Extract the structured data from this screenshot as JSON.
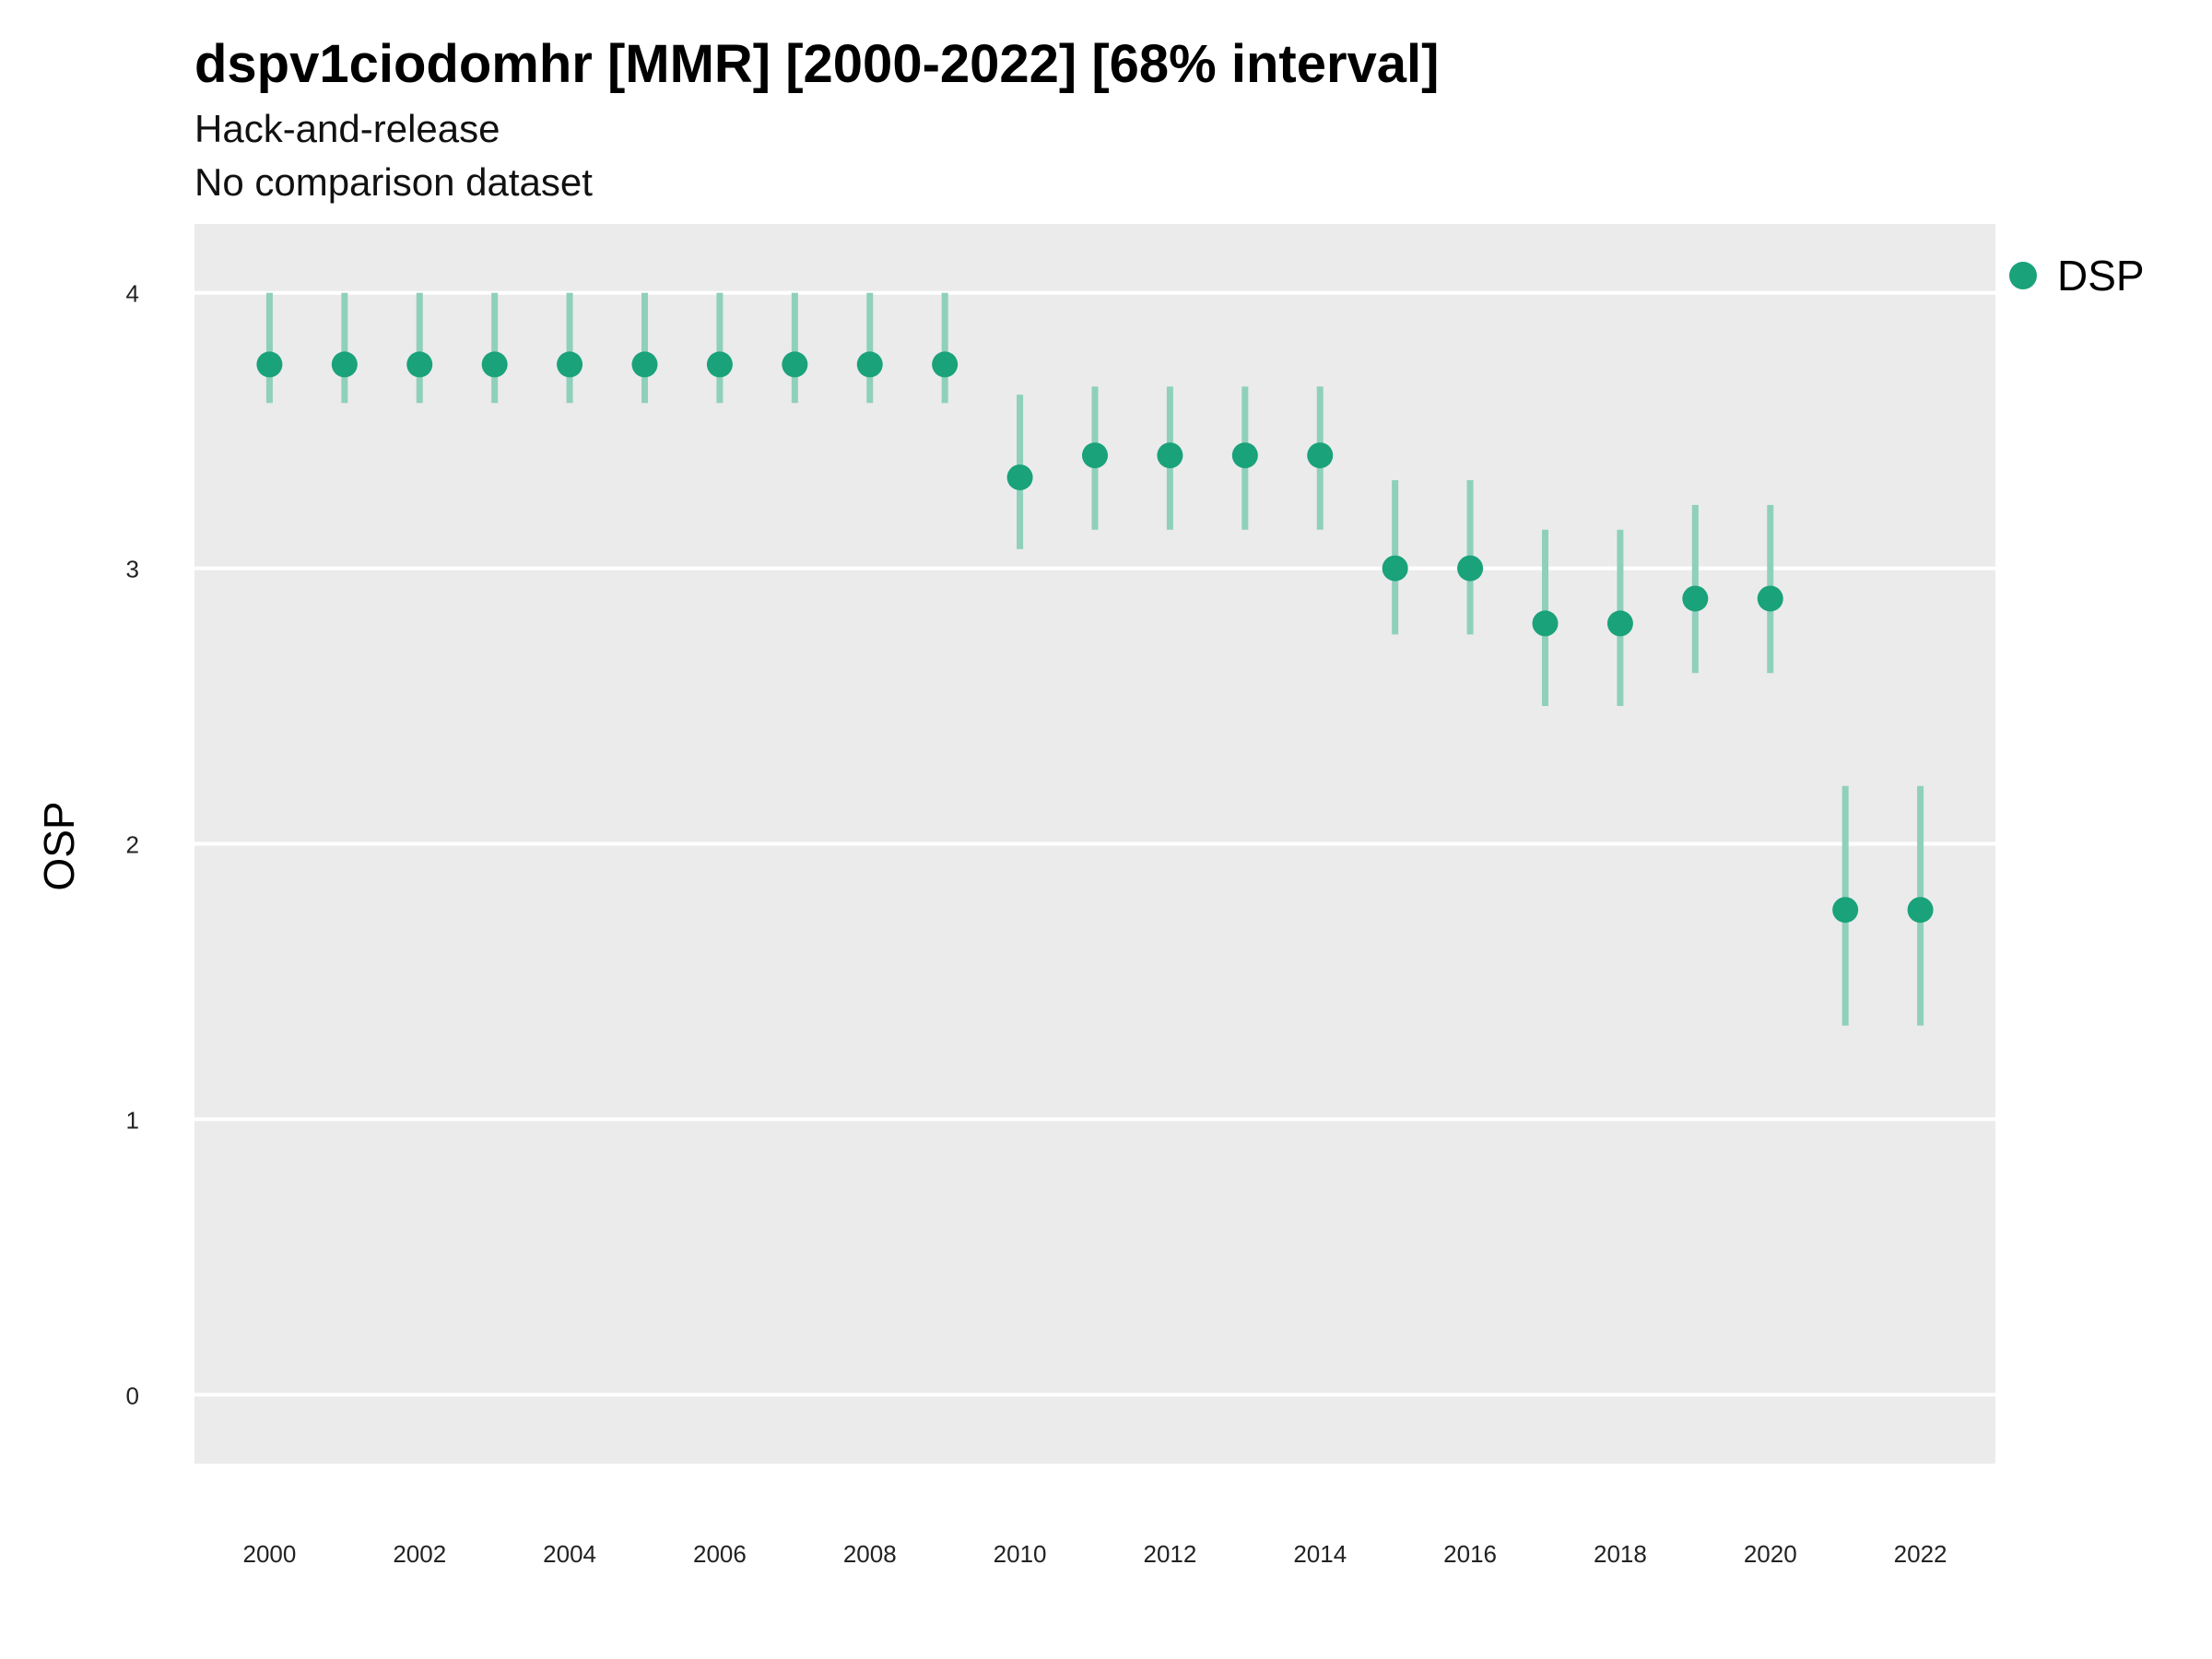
{
  "title": "dspv1ciodomhr [MMR] [2000-2022] [68% interval]",
  "subtitle_lines": [
    "Hack-and-release",
    "No comparison dataset"
  ],
  "colors": {
    "point": "#1aa27a",
    "interval": "#8fd0bb",
    "panel": "#ebebeb",
    "grid": "#ffffff"
  },
  "chart_data": {
    "type": "scatter",
    "title": "dspv1ciodomhr [MMR] [2000-2022] [68% interval]",
    "subtitle": "Hack-and-release\nNo comparison dataset",
    "xlabel": "",
    "ylabel": "OSP",
    "xlim": [
      1999,
      2023
    ],
    "ylim": [
      -0.25,
      4.25
    ],
    "x_ticks": [
      2000,
      2002,
      2004,
      2006,
      2008,
      2010,
      2012,
      2014,
      2016,
      2018,
      2020,
      2022
    ],
    "y_ticks": [
      0,
      1,
      2,
      3,
      4
    ],
    "grid": "horizontal major lines only",
    "legend": "right",
    "series": [
      {
        "name": "DSP",
        "x": [
          2000,
          2001,
          2002,
          2003,
          2004,
          2005,
          2006,
          2007,
          2008,
          2009,
          2010,
          2011,
          2012,
          2013,
          2014,
          2015,
          2016,
          2017,
          2018,
          2019,
          2020,
          2021,
          2022
        ],
        "y": [
          3.74,
          3.74,
          3.74,
          3.74,
          3.74,
          3.74,
          3.74,
          3.74,
          3.74,
          3.74,
          3.33,
          3.41,
          3.41,
          3.41,
          3.41,
          3.0,
          3.0,
          2.8,
          2.8,
          2.89,
          2.89,
          1.76,
          1.76
        ],
        "lower": [
          3.6,
          3.6,
          3.6,
          3.6,
          3.6,
          3.6,
          3.6,
          3.6,
          3.6,
          3.6,
          3.07,
          3.14,
          3.14,
          3.14,
          3.14,
          2.76,
          2.76,
          2.5,
          2.5,
          2.62,
          2.62,
          1.34,
          1.34
        ],
        "upper": [
          4.0,
          4.0,
          4.0,
          4.0,
          4.0,
          4.0,
          4.0,
          4.0,
          4.0,
          4.0,
          3.63,
          3.66,
          3.66,
          3.66,
          3.66,
          3.32,
          3.32,
          3.14,
          3.14,
          3.23,
          3.23,
          2.21,
          2.21
        ]
      }
    ]
  }
}
